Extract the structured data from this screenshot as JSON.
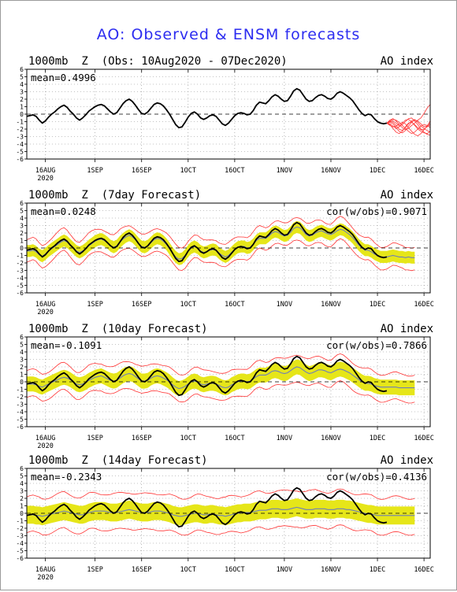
{
  "title": "AO: Observed & ENSM forecasts",
  "colors": {
    "observed": "#000000",
    "ensemble_members": "#ff3333",
    "spread_band": "#e6e619",
    "ensemble_mean": "#6f7fb8",
    "zero_line": "#000000",
    "grid": "#888888",
    "title": "#2d2df0"
  },
  "chart_data": [
    {
      "type": "line",
      "title": "1000mb  Z  (Obs: 10Aug2020 - 07Dec2020)",
      "index_label": "AO index",
      "mean_label": "mean=0.4996",
      "corr_label": "",
      "ylim": [
        -6,
        6
      ],
      "yticks": [
        "6",
        "5",
        "4",
        "3",
        "2",
        "1",
        "0",
        "-1",
        "-2",
        "-3",
        "-4",
        "-5",
        "-6"
      ],
      "xlim": [
        0,
        130
      ],
      "xticks": [
        {
          "day": 6,
          "label": "16AUG",
          "sub": "2020"
        },
        {
          "day": 22,
          "label": "1SEP"
        },
        {
          "day": 37,
          "label": "16SEP"
        },
        {
          "day": 52,
          "label": "1OCT"
        },
        {
          "day": 67,
          "label": "16OCT"
        },
        {
          "day": 83,
          "label": "1NOV"
        },
        {
          "day": 98,
          "label": "16NOV"
        },
        {
          "day": 113,
          "label": "1DEC"
        },
        {
          "day": 128,
          "label": "16DEC"
        }
      ],
      "observed": [
        -0.3,
        -0.2,
        -0.1,
        -0.3,
        -0.8,
        -1.2,
        -0.9,
        -0.4,
        0.0,
        0.3,
        0.7,
        1.0,
        1.2,
        0.9,
        0.4,
        0.0,
        -0.5,
        -0.8,
        -0.5,
        -0.1,
        0.4,
        0.7,
        1.0,
        1.2,
        1.3,
        1.1,
        0.7,
        0.3,
        0.0,
        0.2,
        0.8,
        1.4,
        1.8,
        2.0,
        1.7,
        1.2,
        0.6,
        0.1,
        0.0,
        0.3,
        0.8,
        1.3,
        1.5,
        1.4,
        1.1,
        0.6,
        0.0,
        -0.7,
        -1.4,
        -1.8,
        -1.7,
        -1.1,
        -0.4,
        0.1,
        0.3,
        0.0,
        -0.5,
        -0.7,
        -0.5,
        -0.2,
        -0.1,
        -0.3,
        -0.8,
        -1.3,
        -1.5,
        -1.2,
        -0.7,
        -0.2,
        0.1,
        0.2,
        0.1,
        -0.1,
        0.0,
        0.5,
        1.2,
        1.6,
        1.5,
        1.4,
        1.8,
        2.3,
        2.6,
        2.4,
        2.0,
        1.7,
        1.8,
        2.4,
        3.1,
        3.4,
        3.2,
        2.6,
        2.0,
        1.7,
        1.8,
        2.2,
        2.5,
        2.6,
        2.4,
        2.1,
        2.0,
        2.3,
        2.8,
        3.0,
        2.8,
        2.5,
        2.2,
        1.8,
        1.2,
        0.6,
        0.1,
        -0.2,
        0.0,
        -0.1,
        -0.6,
        -1.0,
        -1.2,
        -1.3,
        -1.2
      ],
      "obs_start": 0,
      "ensemble_start": 116,
      "ensemble_members": [
        [
          -1.2,
          -0.8,
          -0.6,
          -0.9,
          -1.4,
          -1.8,
          -2.1,
          -1.9,
          -1.5,
          -1.2,
          -0.8,
          -0.5,
          0.1,
          0.8,
          1.3
        ],
        [
          -1.2,
          -1.0,
          -1.1,
          -1.5,
          -2.0,
          -2.2,
          -1.8,
          -1.3,
          -0.9,
          -0.7,
          -1.1,
          -1.6,
          -1.9,
          -2.2,
          -2.4
        ],
        [
          -1.2,
          -1.3,
          -1.6,
          -1.9,
          -1.7,
          -1.2,
          -0.8,
          -0.7,
          -1.0,
          -1.5,
          -2.0,
          -2.3,
          -2.5,
          -2.6,
          -2.3
        ],
        [
          -1.2,
          -0.9,
          -0.7,
          -0.8,
          -1.1,
          -1.5,
          -1.9,
          -2.3,
          -2.6,
          -2.4,
          -2.0,
          -1.6,
          -1.4,
          -1.5,
          -1.8
        ],
        [
          -1.2,
          -1.1,
          -1.3,
          -1.8,
          -2.3,
          -2.5,
          -2.2,
          -1.6,
          -1.1,
          -0.8,
          -0.9,
          -1.3,
          -1.7,
          -1.6,
          -1.2
        ],
        [
          -1.2,
          -1.4,
          -1.9,
          -2.4,
          -2.6,
          -2.3,
          -1.7,
          -1.2,
          -1.1,
          -1.4,
          -1.8,
          -2.1,
          -2.0,
          -1.7,
          -1.4
        ],
        [
          -1.2,
          -1.0,
          -0.9,
          -1.2,
          -1.6,
          -1.4,
          -1.0,
          -0.6,
          -0.5,
          -0.9,
          -1.4,
          -2.0,
          -2.4,
          -2.7,
          -2.8
        ],
        [
          -1.2,
          -1.5,
          -1.7,
          -1.6,
          -1.3,
          -1.1,
          -1.3,
          -1.8,
          -2.3,
          -2.7,
          -2.9,
          -2.6,
          -2.1,
          -1.6,
          -0.9
        ]
      ]
    },
    {
      "type": "line",
      "title": "1000mb  Z  (7day Forecast)",
      "index_label": "AO index",
      "mean_label": "mean=0.0248",
      "corr_label": "cor(w/obs)=0.9071",
      "ylim": [
        -6,
        6
      ],
      "yticks": [
        "6",
        "5",
        "4",
        "3",
        "2",
        "1",
        "0",
        "-1",
        "-2",
        "-3",
        "-4",
        "-5",
        "-6"
      ],
      "xlim": [
        0,
        130
      ],
      "xticks": [
        {
          "day": 6,
          "label": "16AUG",
          "sub": "2020"
        },
        {
          "day": 22,
          "label": "1SEP"
        },
        {
          "day": 37,
          "label": "16SEP"
        },
        {
          "day": 52,
          "label": "1OCT"
        },
        {
          "day": 67,
          "label": "16OCT"
        },
        {
          "day": 83,
          "label": "1NOV"
        },
        {
          "day": 98,
          "label": "16NOV"
        },
        {
          "day": 113,
          "label": "1DEC"
        },
        {
          "day": 128,
          "label": "16DEC"
        }
      ],
      "observed": [
        -0.3,
        -0.2,
        -0.1,
        -0.3,
        -0.8,
        -1.2,
        -0.9,
        -0.4,
        0.0,
        0.3,
        0.7,
        1.0,
        1.2,
        0.9,
        0.4,
        0.0,
        -0.5,
        -0.8,
        -0.5,
        -0.1,
        0.4,
        0.7,
        1.0,
        1.2,
        1.3,
        1.1,
        0.7,
        0.3,
        0.0,
        0.2,
        0.8,
        1.4,
        1.8,
        2.0,
        1.7,
        1.2,
        0.6,
        0.1,
        0.0,
        0.3,
        0.8,
        1.3,
        1.5,
        1.4,
        1.1,
        0.6,
        0.0,
        -0.7,
        -1.4,
        -1.8,
        -1.7,
        -1.1,
        -0.4,
        0.1,
        0.3,
        0.0,
        -0.5,
        -0.7,
        -0.5,
        -0.2,
        -0.1,
        -0.3,
        -0.8,
        -1.3,
        -1.5,
        -1.2,
        -0.7,
        -0.2,
        0.1,
        0.2,
        0.1,
        -0.1,
        0.0,
        0.5,
        1.2,
        1.6,
        1.5,
        1.4,
        1.8,
        2.3,
        2.6,
        2.4,
        2.0,
        1.7,
        1.8,
        2.4,
        3.1,
        3.4,
        3.2,
        2.6,
        2.0,
        1.7,
        1.8,
        2.2,
        2.5,
        2.6,
        2.4,
        2.1,
        2.0,
        2.3,
        2.8,
        3.0,
        2.8,
        2.5,
        2.2,
        1.8,
        1.2,
        0.6,
        0.1,
        -0.2,
        0.0,
        -0.1,
        -0.6,
        -1.0,
        -1.2,
        -1.3,
        -1.2
      ],
      "obs_start": 0,
      "fc_start": 0,
      "ensemble_mean": [
        -0.4,
        -0.4,
        -0.3,
        -0.5,
        -0.9,
        -1.1,
        -0.8,
        -0.4,
        -0.1,
        0.2,
        0.5,
        0.8,
        1.0,
        0.8,
        0.4,
        0.0,
        -0.4,
        -0.6,
        -0.4,
        -0.1,
        0.3,
        0.6,
        0.9,
        1.1,
        1.2,
        1.0,
        0.7,
        0.3,
        0.1,
        0.3,
        0.8,
        1.2,
        1.5,
        1.7,
        1.5,
        1.1,
        0.6,
        0.2,
        0.1,
        0.3,
        0.7,
        1.1,
        1.3,
        1.2,
        0.9,
        0.5,
        -0.1,
        -0.7,
        -1.2,
        -1.5,
        -1.4,
        -1.0,
        -0.4,
        0.0,
        0.2,
        0.0,
        -0.4,
        -0.6,
        -0.5,
        -0.3,
        -0.2,
        -0.3,
        -0.7,
        -1.0,
        -1.2,
        -1.0,
        -0.6,
        -0.2,
        0.1,
        0.2,
        0.2,
        0.0,
        0.1,
        0.5,
        1.0,
        1.3,
        1.3,
        1.3,
        1.6,
        2.0,
        2.2,
        2.1,
        1.8,
        1.6,
        1.7,
        2.1,
        2.6,
        2.8,
        2.7,
        2.3,
        1.8,
        1.6,
        1.7,
        2.0,
        2.2,
        2.3,
        2.1,
        1.9,
        1.8,
        2.0,
        2.3,
        2.5,
        2.4,
        2.1,
        1.8,
        1.4,
        0.9,
        0.4,
        0.0,
        -0.3,
        -0.3,
        -0.5,
        -0.8,
        -1.0,
        -1.2,
        -1.2,
        -1.2,
        -1.1,
        -1.0,
        -1.1,
        -1.2,
        -1.2,
        -1.3,
        -1.2,
        -1.3,
        -1.3
      ],
      "spread": 0.8,
      "envelope": 1.5
    },
    {
      "type": "line",
      "title": "1000mb  Z  (10day Forecast)",
      "index_label": "AO index",
      "mean_label": "mean=-0.1091",
      "corr_label": "cor(w/obs)=0.7866",
      "ylim": [
        -6,
        6
      ],
      "yticks": [
        "6",
        "5",
        "4",
        "3",
        "2",
        "1",
        "0",
        "-1",
        "-2",
        "-3",
        "-4",
        "-5",
        "-6"
      ],
      "xlim": [
        0,
        130
      ],
      "xticks": [
        {
          "day": 6,
          "label": "16AUG",
          "sub": "2020"
        },
        {
          "day": 22,
          "label": "1SEP"
        },
        {
          "day": 37,
          "label": "16SEP"
        },
        {
          "day": 52,
          "label": "1OCT"
        },
        {
          "day": 67,
          "label": "16OCT"
        },
        {
          "day": 83,
          "label": "1NOV"
        },
        {
          "day": 98,
          "label": "16NOV"
        },
        {
          "day": 113,
          "label": "1DEC"
        },
        {
          "day": 128,
          "label": "16DEC"
        }
      ],
      "observed": [
        -0.3,
        -0.2,
        -0.1,
        -0.3,
        -0.8,
        -1.2,
        -0.9,
        -0.4,
        0.0,
        0.3,
        0.7,
        1.0,
        1.2,
        0.9,
        0.4,
        0.0,
        -0.5,
        -0.8,
        -0.5,
        -0.1,
        0.4,
        0.7,
        1.0,
        1.2,
        1.3,
        1.1,
        0.7,
        0.3,
        0.0,
        0.2,
        0.8,
        1.4,
        1.8,
        2.0,
        1.7,
        1.2,
        0.6,
        0.1,
        0.0,
        0.3,
        0.8,
        1.3,
        1.5,
        1.4,
        1.1,
        0.6,
        0.0,
        -0.7,
        -1.4,
        -1.8,
        -1.7,
        -1.1,
        -0.4,
        0.1,
        0.3,
        0.0,
        -0.5,
        -0.7,
        -0.5,
        -0.2,
        -0.1,
        -0.3,
        -0.8,
        -1.3,
        -1.5,
        -1.2,
        -0.7,
        -0.2,
        0.1,
        0.2,
        0.1,
        -0.1,
        0.0,
        0.5,
        1.2,
        1.6,
        1.5,
        1.4,
        1.8,
        2.3,
        2.6,
        2.4,
        2.0,
        1.7,
        1.8,
        2.4,
        3.1,
        3.4,
        3.2,
        2.6,
        2.0,
        1.7,
        1.8,
        2.2,
        2.5,
        2.6,
        2.4,
        2.1,
        2.0,
        2.3,
        2.8,
        3.0,
        2.8,
        2.5,
        2.2,
        1.8,
        1.2,
        0.6,
        0.1,
        -0.2,
        0.0,
        -0.1,
        -0.6,
        -1.0,
        -1.2,
        -1.3,
        -1.2
      ],
      "obs_start": 0,
      "fc_start": 0,
      "ensemble_mean": [
        -0.3,
        -0.3,
        -0.3,
        -0.4,
        -0.6,
        -0.7,
        -0.5,
        -0.3,
        -0.1,
        0.1,
        0.3,
        0.5,
        0.6,
        0.5,
        0.3,
        0.0,
        -0.3,
        -0.4,
        -0.3,
        -0.1,
        0.2,
        0.4,
        0.6,
        0.7,
        0.8,
        0.6,
        0.4,
        0.2,
        0.1,
        0.2,
        0.5,
        0.8,
        1.0,
        1.1,
        1.0,
        0.7,
        0.4,
        0.1,
        0.1,
        0.2,
        0.5,
        0.7,
        0.8,
        0.7,
        0.5,
        0.3,
        0.0,
        -0.4,
        -0.7,
        -0.9,
        -0.8,
        -0.6,
        -0.3,
        0.0,
        0.1,
        0.0,
        -0.3,
        -0.4,
        -0.3,
        -0.2,
        -0.2,
        -0.3,
        -0.5,
        -0.7,
        -0.8,
        -0.7,
        -0.4,
        -0.2,
        0.0,
        0.1,
        0.1,
        0.0,
        0.1,
        0.4,
        0.7,
        0.9,
        0.9,
        0.9,
        1.1,
        1.4,
        1.5,
        1.4,
        1.2,
        1.1,
        1.2,
        1.5,
        1.8,
        2.0,
        1.9,
        1.6,
        1.3,
        1.1,
        1.2,
        1.4,
        1.6,
        1.6,
        1.5,
        1.3,
        1.2,
        1.4,
        1.6,
        1.7,
        1.6,
        1.4,
        1.2,
        0.9,
        0.6,
        0.3,
        0.0,
        -0.2,
        -0.2,
        -0.3,
        -0.5,
        -0.6,
        -0.7,
        -0.7,
        -0.7,
        -0.7,
        -0.7,
        -0.7,
        -0.8,
        -0.8,
        -0.8,
        -0.8,
        -0.8,
        -0.8
      ],
      "spread": 1.0,
      "envelope": 1.8
    },
    {
      "type": "line",
      "title": "1000mb  Z  (14day Forecast)",
      "index_label": "AO index",
      "mean_label": "mean=-0.2343",
      "corr_label": "cor(w/obs)=0.4136",
      "ylim": [
        -6,
        6
      ],
      "yticks": [
        "6",
        "5",
        "4",
        "3",
        "2",
        "1",
        "0",
        "-1",
        "-2",
        "-3",
        "-4",
        "-5",
        "-6"
      ],
      "xlim": [
        0,
        130
      ],
      "xticks": [
        {
          "day": 6,
          "label": "16AUG",
          "sub": "2020"
        },
        {
          "day": 22,
          "label": "1SEP"
        },
        {
          "day": 37,
          "label": "16SEP"
        },
        {
          "day": 52,
          "label": "1OCT"
        },
        {
          "day": 67,
          "label": "16OCT"
        },
        {
          "day": 83,
          "label": "1NOV"
        },
        {
          "day": 98,
          "label": "16NOV"
        },
        {
          "day": 113,
          "label": "1DEC"
        },
        {
          "day": 128,
          "label": "16DEC"
        }
      ],
      "observed": [
        -0.3,
        -0.2,
        -0.1,
        -0.3,
        -0.8,
        -1.2,
        -0.9,
        -0.4,
        0.0,
        0.3,
        0.7,
        1.0,
        1.2,
        0.9,
        0.4,
        0.0,
        -0.5,
        -0.8,
        -0.5,
        -0.1,
        0.4,
        0.7,
        1.0,
        1.2,
        1.3,
        1.1,
        0.7,
        0.3,
        0.0,
        0.2,
        0.8,
        1.4,
        1.8,
        2.0,
        1.7,
        1.2,
        0.6,
        0.1,
        0.0,
        0.3,
        0.8,
        1.3,
        1.5,
        1.4,
        1.1,
        0.6,
        0.0,
        -0.7,
        -1.4,
        -1.8,
        -1.7,
        -1.1,
        -0.4,
        0.1,
        0.3,
        0.0,
        -0.5,
        -0.7,
        -0.5,
        -0.2,
        -0.1,
        -0.3,
        -0.8,
        -1.3,
        -1.5,
        -1.2,
        -0.7,
        -0.2,
        0.1,
        0.2,
        0.1,
        -0.1,
        0.0,
        0.5,
        1.2,
        1.6,
        1.5,
        1.4,
        1.8,
        2.3,
        2.6,
        2.4,
        2.0,
        1.7,
        1.8,
        2.4,
        3.1,
        3.4,
        3.2,
        2.6,
        2.0,
        1.7,
        1.8,
        2.2,
        2.5,
        2.6,
        2.4,
        2.1,
        2.0,
        2.3,
        2.8,
        3.0,
        2.8,
        2.5,
        2.2,
        1.8,
        1.2,
        0.6,
        0.1,
        -0.2,
        0.0,
        -0.1,
        -0.6,
        -1.0,
        -1.2,
        -1.3,
        -1.2
      ],
      "obs_start": 0,
      "fc_start": 0,
      "ensemble_mean": [
        -0.2,
        -0.2,
        -0.2,
        -0.3,
        -0.3,
        -0.4,
        -0.3,
        -0.2,
        -0.1,
        0.0,
        0.1,
        0.2,
        0.3,
        0.2,
        0.1,
        0.0,
        -0.1,
        -0.2,
        -0.2,
        -0.1,
        0.1,
        0.2,
        0.3,
        0.3,
        0.3,
        0.3,
        0.2,
        0.1,
        0.1,
        0.1,
        0.2,
        0.3,
        0.4,
        0.5,
        0.4,
        0.3,
        0.2,
        0.1,
        0.1,
        0.1,
        0.2,
        0.3,
        0.3,
        0.3,
        0.2,
        0.1,
        0.0,
        -0.2,
        -0.3,
        -0.4,
        -0.4,
        -0.3,
        -0.2,
        -0.1,
        0.0,
        0.0,
        -0.1,
        -0.2,
        -0.2,
        -0.1,
        -0.1,
        -0.2,
        -0.3,
        -0.3,
        -0.4,
        -0.3,
        -0.2,
        -0.1,
        0.0,
        0.0,
        0.1,
        0.1,
        0.1,
        0.2,
        0.3,
        0.4,
        0.4,
        0.4,
        0.5,
        0.6,
        0.6,
        0.6,
        0.5,
        0.5,
        0.5,
        0.6,
        0.7,
        0.8,
        0.7,
        0.6,
        0.5,
        0.5,
        0.5,
        0.6,
        0.6,
        0.6,
        0.6,
        0.5,
        0.5,
        0.5,
        0.6,
        0.6,
        0.6,
        0.5,
        0.5,
        0.4,
        0.3,
        0.2,
        0.1,
        0.0,
        -0.1,
        -0.1,
        -0.2,
        -0.3,
        -0.3,
        -0.3,
        -0.3,
        -0.3,
        -0.3,
        -0.3,
        -0.3,
        -0.3,
        -0.3,
        -0.3,
        -0.3,
        -0.3
      ],
      "spread": 1.2,
      "envelope": 2.4
    }
  ]
}
